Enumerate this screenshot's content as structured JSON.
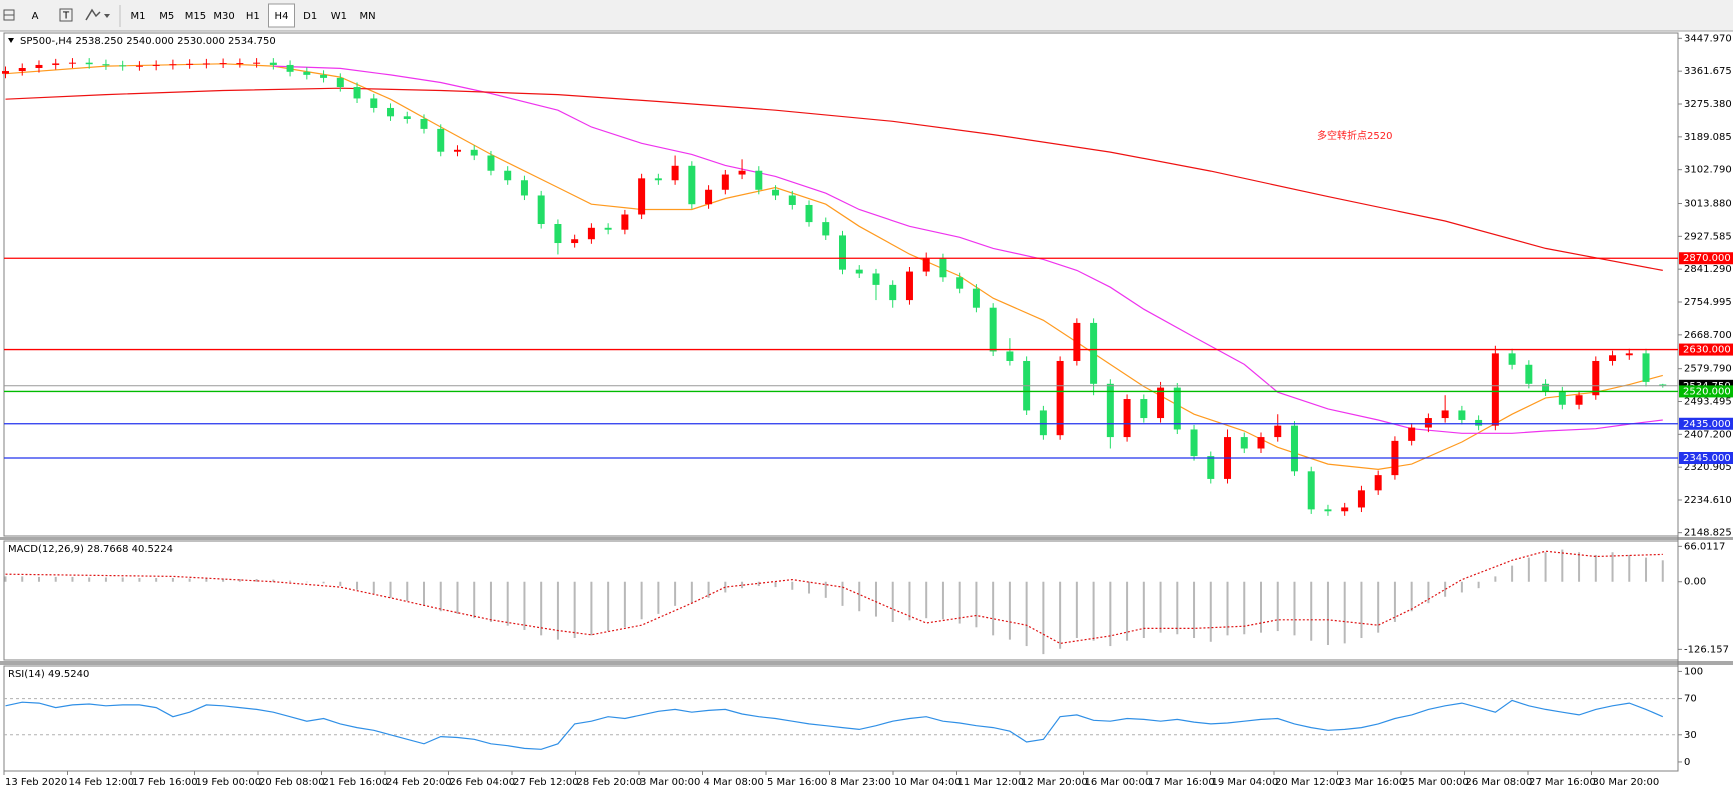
{
  "toolbar": {
    "tools": [
      "A"
    ],
    "timeframes": [
      "M1",
      "M5",
      "M15",
      "M30",
      "H1",
      "H4",
      "D1",
      "W1",
      "MN"
    ],
    "active": "H4"
  },
  "time_labels": [
    "13 Feb 2020",
    "14 Feb 12:00",
    "17 Feb 16:00",
    "19 Feb 00:00",
    "20 Feb 08:00",
    "21 Feb 16:00",
    "24 Feb 20:00",
    "26 Feb 04:00",
    "27 Feb 12:00",
    "28 Feb 20:00",
    "3 Mar 00:00",
    "4 Mar 08:00",
    "5 Mar 16:00",
    "8 Mar 23:00",
    "10 Mar 04:00",
    "11 Mar 12:00",
    "12 Mar 20:00",
    "16 Mar 00:00",
    "17 Mar 16:00",
    "19 Mar 04:00",
    "20 Mar 12:00",
    "23 Mar 16:00",
    "25 Mar 00:00",
    "26 Mar 08:00",
    "27 Mar 16:00",
    "30 Mar 20:00"
  ],
  "chart_data": [
    {
      "type": "candlestick",
      "label": "SP500-,H4  2538.250 2540.000 2530.000 2534.750",
      "up_color": "#ff0000",
      "down_color": "#22dd66",
      "open": [
        3355,
        3362,
        3370,
        3378,
        3382,
        3384,
        3380,
        3377,
        3375,
        3376,
        3378,
        3380,
        3381,
        3382,
        3383,
        3383,
        3384,
        3378,
        3360,
        3352,
        3344,
        3320,
        3290,
        3265,
        3243,
        3236,
        3210,
        3150,
        3155,
        3140,
        3100,
        3075,
        3035,
        2960,
        2910,
        2920,
        2950,
        2945,
        2985,
        3080,
        3075,
        3113,
        3012,
        3050,
        3090,
        3100,
        3050,
        3035,
        3010,
        2965,
        2930,
        2840,
        2830,
        2800,
        2760,
        2835,
        2870,
        2820,
        2790,
        2740,
        2625,
        2600,
        2470,
        2405,
        2600,
        2700,
        2540,
        2400,
        2500,
        2450,
        2530,
        2420,
        2350,
        2290,
        2400,
        2370,
        2400,
        2430,
        2310,
        2210,
        2205,
        2215,
        2260,
        2300,
        2390,
        2425,
        2450,
        2470,
        2445,
        2430,
        2620,
        2590,
        2540,
        2520,
        2485,
        2510,
        2600,
        2615,
        2620,
        2538.25
      ],
      "high": [
        3374,
        3382,
        3390,
        3394,
        3396,
        3396,
        3392,
        3389,
        3388,
        3390,
        3392,
        3393,
        3394,
        3395,
        3395,
        3396,
        3396,
        3390,
        3372,
        3364,
        3356,
        3332,
        3302,
        3277,
        3255,
        3248,
        3222,
        3167,
        3167,
        3152,
        3112,
        3087,
        3047,
        2972,
        2932,
        2962,
        2962,
        2997,
        3092,
        3092,
        3140,
        3125,
        3062,
        3102,
        3130,
        3112,
        3062,
        3047,
        3022,
        2977,
        2942,
        2852,
        2842,
        2812,
        2847,
        2885,
        2882,
        2832,
        2802,
        2752,
        2660,
        2612,
        2482,
        2612,
        2712,
        2712,
        2552,
        2512,
        2512,
        2545,
        2542,
        2432,
        2362,
        2420,
        2412,
        2412,
        2460,
        2442,
        2322,
        2222,
        2227,
        2272,
        2312,
        2402,
        2437,
        2462,
        2510,
        2482,
        2457,
        2640,
        2632,
        2602,
        2552,
        2532,
        2522,
        2612,
        2627,
        2632,
        2632,
        2540
      ],
      "low": [
        3343,
        3350,
        3358,
        3366,
        3370,
        3368,
        3365,
        3363,
        3363,
        3364,
        3366,
        3368,
        3369,
        3370,
        3371,
        3371,
        3366,
        3348,
        3340,
        3332,
        3308,
        3278,
        3253,
        3231,
        3224,
        3198,
        3138,
        3138,
        3128,
        3088,
        3063,
        3023,
        2948,
        2880,
        2898,
        2908,
        2933,
        2933,
        2973,
        3063,
        3063,
        3000,
        3000,
        3038,
        3078,
        3038,
        3023,
        2998,
        2953,
        2918,
        2828,
        2818,
        2760,
        2740,
        2748,
        2823,
        2808,
        2778,
        2728,
        2613,
        2588,
        2458,
        2393,
        2393,
        2588,
        2510,
        2370,
        2388,
        2438,
        2438,
        2408,
        2338,
        2278,
        2278,
        2358,
        2358,
        2388,
        2298,
        2198,
        2193,
        2193,
        2203,
        2248,
        2288,
        2378,
        2413,
        2438,
        2433,
        2418,
        2418,
        2578,
        2528,
        2508,
        2473,
        2473,
        2498,
        2588,
        2603,
        2533,
        2530
      ],
      "close": [
        3362,
        3370,
        3378,
        3382,
        3384,
        3380,
        3377,
        3375,
        3376,
        3378,
        3380,
        3381,
        3382,
        3383,
        3383,
        3384,
        3378,
        3360,
        3352,
        3344,
        3320,
        3290,
        3265,
        3243,
        3236,
        3210,
        3150,
        3155,
        3140,
        3100,
        3075,
        3035,
        2960,
        2910,
        2920,
        2950,
        2945,
        2985,
        3080,
        3075,
        3113,
        3012,
        3050,
        3090,
        3100,
        3050,
        3035,
        3010,
        2965,
        2930,
        2840,
        2830,
        2800,
        2760,
        2835,
        2870,
        2820,
        2790,
        2740,
        2625,
        2600,
        2470,
        2405,
        2600,
        2700,
        2540,
        2400,
        2500,
        2450,
        2530,
        2420,
        2350,
        2290,
        2400,
        2370,
        2400,
        2430,
        2310,
        2210,
        2205,
        2215,
        2260,
        2300,
        2390,
        2425,
        2450,
        2470,
        2445,
        2430,
        2620,
        2590,
        2540,
        2520,
        2485,
        2510,
        2600,
        2615,
        2620,
        2545,
        2534.75
      ],
      "series": [
        {
          "color": "#ff9a1f",
          "x": [
            0,
            6,
            13,
            16,
            20,
            23,
            26,
            29,
            33,
            35,
            38,
            41,
            43,
            46,
            49,
            51,
            54,
            57,
            59,
            62,
            64,
            66,
            68,
            71,
            74,
            76,
            79,
            82,
            84,
            87,
            90,
            92,
            95,
            97,
            99
          ],
          "values": [
            3355,
            3375,
            3381,
            3375,
            3346,
            3288,
            3215,
            3143,
            3056,
            3012,
            2998,
            2998,
            3027,
            3056,
            3012,
            2954,
            2881,
            2823,
            2765,
            2707,
            2649,
            2591,
            2533,
            2460,
            2416,
            2373,
            2329,
            2315,
            2329,
            2387,
            2460,
            2503,
            2518,
            2538,
            2562
          ]
        },
        {
          "color": "#ee33ee",
          "x": [
            16,
            20,
            23,
            26,
            29,
            33,
            35,
            38,
            41,
            43,
            46,
            49,
            51,
            54,
            57,
            59,
            62,
            64,
            66,
            68,
            71,
            74,
            76,
            79,
            82,
            84,
            87,
            90,
            92,
            95,
            97,
            99
          ],
          "values": [
            3375,
            3369,
            3352,
            3332,
            3303,
            3259,
            3215,
            3172,
            3143,
            3114,
            3085,
            3041,
            2998,
            2954,
            2925,
            2896,
            2867,
            2838,
            2794,
            2736,
            2663,
            2591,
            2518,
            2474,
            2445,
            2422,
            2410,
            2410,
            2416,
            2422,
            2434,
            2445
          ]
        },
        {
          "color": "#ee1111",
          "x": [
            0,
            6,
            13,
            20,
            26,
            33,
            39,
            46,
            53,
            59,
            66,
            72,
            79,
            86,
            92,
            99
          ],
          "values": [
            3288,
            3300,
            3311,
            3317,
            3311,
            3300,
            3282,
            3259,
            3230,
            3195,
            3149,
            3099,
            3032,
            2968,
            2896,
            2838
          ]
        }
      ],
      "levels": [
        {
          "value": 2870,
          "label": "2870.000",
          "color": "#ff0000"
        },
        {
          "value": 2630,
          "label": "2630.000",
          "color": "#ff0000"
        },
        {
          "value": 2520,
          "label": "2520.000",
          "color": "#00bb00"
        },
        {
          "value": 2435,
          "label": "2435.000",
          "color": "#2233ee"
        },
        {
          "value": 2345,
          "label": "2345.000",
          "color": "#2233ee"
        }
      ],
      "last_price": {
        "value": 2534.75,
        "label": "2534.750"
      },
      "annotation": {
        "text": "多空转折点2520",
        "color": "#ff2020"
      },
      "ylim": [
        2140,
        3462
      ],
      "yticks": [
        {
          "value": 3447.97,
          "label": "3447.970"
        },
        {
          "value": 3361.675,
          "label": "3361.675"
        },
        {
          "value": 3275.38,
          "label": "3275.380"
        },
        {
          "value": 3189.085,
          "label": "3189.085"
        },
        {
          "value": 3102.79,
          "label": "3102.790"
        },
        {
          "value": 3013.88,
          "label": "3013.880"
        },
        {
          "value": 2927.585,
          "label": "2927.585"
        },
        {
          "value": 2841.29,
          "label": "2841.290"
        },
        {
          "value": 2754.995,
          "label": "2754.995"
        },
        {
          "value": 2668.7,
          "label": "2668.700"
        },
        {
          "value": 2579.79,
          "label": "2579.790"
        },
        {
          "value": 2493.495,
          "label": "2493.495"
        },
        {
          "value": 2407.2,
          "label": "2407.200"
        },
        {
          "value": 2320.905,
          "label": "2320.905"
        },
        {
          "value": 2234.61,
          "label": "2234.610"
        },
        {
          "value": 2148.825,
          "label": "2148.825"
        }
      ]
    },
    {
      "type": "macd",
      "label": "MACD(12,26,9) 28.7668 40.5224",
      "color": "#b8b8b8",
      "values": [
        10,
        10,
        9,
        9,
        9,
        8,
        8,
        8,
        7,
        7,
        7,
        6,
        6,
        6,
        5,
        5,
        4,
        2,
        0,
        -3,
        -8,
        -15,
        -22,
        -30,
        -36,
        -45,
        -55,
        -60,
        -68,
        -75,
        -82,
        -90,
        -100,
        -108,
        -105,
        -100,
        -92,
        -85,
        -70,
        -60,
        -45,
        -40,
        -30,
        -20,
        -12,
        -8,
        -10,
        -15,
        -22,
        -30,
        -45,
        -55,
        -65,
        -75,
        -72,
        -68,
        -70,
        -78,
        -85,
        -100,
        -108,
        -120,
        -135,
        -125,
        -105,
        -110,
        -120,
        -110,
        -105,
        -95,
        -98,
        -105,
        -112,
        -100,
        -98,
        -95,
        -92,
        -100,
        -110,
        -118,
        -115,
        -105,
        -95,
        -75,
        -55,
        -40,
        -28,
        -20,
        -12,
        10,
        30,
        45,
        55,
        60,
        55,
        50,
        55,
        50,
        45,
        40
      ],
      "signal": {
        "color": "#dd1111",
        "x": [
          0,
          10,
          16,
          20,
          23,
          26,
          29,
          33,
          35,
          38,
          41,
          43,
          47,
          50,
          53,
          55,
          58,
          61,
          63,
          66,
          68,
          71,
          74,
          76,
          79,
          82,
          84,
          87,
          90,
          92,
          95,
          99
        ],
        "values": [
          14,
          10,
          0,
          -10,
          -30,
          -51,
          -71,
          -91,
          -99,
          -81,
          -40,
          -10,
          4,
          -10,
          -51,
          -77,
          -63,
          -81,
          -115,
          -101,
          -87,
          -87,
          -83,
          -71,
          -71,
          -81,
          -51,
          4,
          40,
          57,
          47,
          51
        ]
      },
      "ylim": [
        -146,
        76
      ],
      "yticks": [
        66.0117,
        {
          "value": 0,
          "label": "0.00"
        },
        -126.157
      ]
    },
    {
      "type": "line",
      "label": "RSI(14) 49.5240",
      "color": "#2f8fe6",
      "grid": "inner",
      "values": [
        62,
        66,
        65,
        60,
        63,
        64,
        62,
        63,
        63,
        60,
        50,
        55,
        63,
        62,
        60,
        58,
        55,
        50,
        45,
        48,
        42,
        38,
        35,
        30,
        25,
        20,
        28,
        27,
        25,
        20,
        18,
        15,
        14,
        20,
        42,
        45,
        50,
        48,
        52,
        56,
        58,
        55,
        57,
        58,
        53,
        50,
        48,
        45,
        42,
        40,
        38,
        36,
        40,
        45,
        48,
        50,
        45,
        43,
        40,
        38,
        34,
        22,
        25,
        50,
        52,
        46,
        45,
        48,
        47,
        45,
        47,
        44,
        42,
        43,
        45,
        47,
        48,
        42,
        38,
        35,
        36,
        38,
        42,
        48,
        52,
        58,
        62,
        65,
        60,
        55,
        68,
        62,
        58,
        55,
        52,
        58,
        62,
        65,
        58,
        50
      ],
      "ylim": [
        -10,
        106
      ],
      "yticks": [
        100,
        70,
        30,
        0
      ]
    }
  ]
}
